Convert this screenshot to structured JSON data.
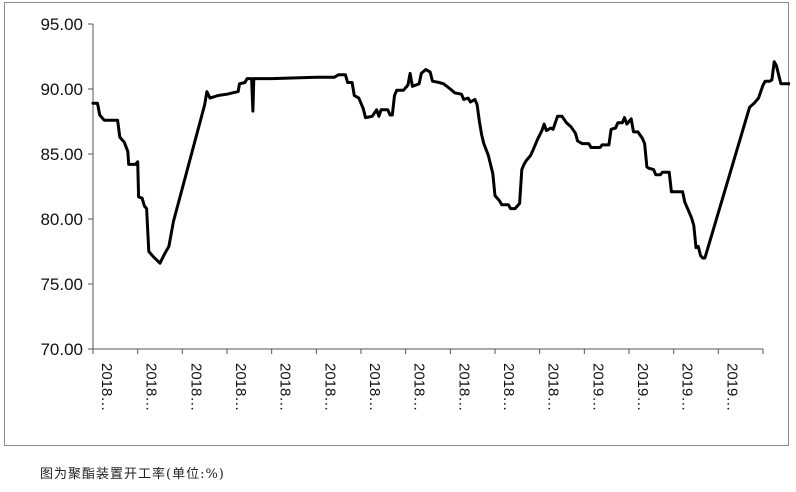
{
  "caption": "图为聚酯装置开工率(单位:%)",
  "chart_data": {
    "type": "line",
    "title": "",
    "xlabel": "",
    "ylabel": "",
    "ylim": [
      70,
      95
    ],
    "y_ticks": [
      "70.00",
      "75.00",
      "80.00",
      "85.00",
      "90.00",
      "95.00"
    ],
    "x_tick_labels": [
      "2018…",
      "2018…",
      "2018…",
      "2018…",
      "2018…",
      "2018…",
      "2018…",
      "2018…",
      "2018…",
      "2018…",
      "2018…",
      "2019…",
      "2019…",
      "2019…",
      "2019…"
    ],
    "grid": false,
    "legend": "none",
    "line_color": "#000000",
    "series": [
      {
        "values": [
          [
            0.0,
            88.9
          ],
          [
            0.1,
            88.9
          ],
          [
            0.15,
            88.0
          ],
          [
            0.25,
            87.6
          ],
          [
            0.55,
            87.6
          ],
          [
            0.6,
            86.3
          ],
          [
            0.7,
            85.9
          ],
          [
            0.78,
            85.2
          ],
          [
            0.8,
            84.2
          ],
          [
            0.95,
            84.2
          ],
          [
            1.0,
            84.4
          ],
          [
            1.02,
            81.7
          ],
          [
            1.1,
            81.6
          ],
          [
            1.15,
            81.0
          ],
          [
            1.2,
            80.8
          ],
          [
            1.25,
            77.5
          ],
          [
            1.35,
            77.1
          ],
          [
            1.5,
            76.6
          ],
          [
            1.6,
            77.3
          ],
          [
            1.7,
            77.9
          ],
          [
            1.8,
            79.8
          ],
          [
            2.5,
            88.8
          ],
          [
            2.55,
            89.8
          ],
          [
            2.62,
            89.3
          ],
          [
            2.8,
            89.5
          ],
          [
            3.0,
            89.6
          ],
          [
            3.25,
            89.8
          ],
          [
            3.28,
            90.4
          ],
          [
            3.4,
            90.5
          ],
          [
            3.45,
            90.8
          ],
          [
            3.55,
            90.8
          ],
          [
            3.58,
            88.3
          ],
          [
            3.6,
            90.8
          ],
          [
            4.0,
            90.8
          ],
          [
            5.0,
            90.9
          ],
          [
            5.4,
            90.9
          ],
          [
            5.5,
            91.1
          ],
          [
            5.65,
            91.1
          ],
          [
            5.7,
            90.5
          ],
          [
            5.8,
            90.5
          ],
          [
            5.85,
            89.5
          ],
          [
            5.95,
            89.3
          ],
          [
            6.05,
            88.5
          ],
          [
            6.1,
            87.8
          ],
          [
            6.25,
            87.9
          ],
          [
            6.35,
            88.4
          ],
          [
            6.4,
            87.9
          ],
          [
            6.45,
            88.4
          ],
          [
            6.6,
            88.4
          ],
          [
            6.65,
            88.0
          ],
          [
            6.7,
            88.0
          ],
          [
            6.75,
            89.5
          ],
          [
            6.8,
            89.9
          ],
          [
            6.95,
            89.9
          ],
          [
            7.05,
            90.3
          ],
          [
            7.1,
            91.2
          ],
          [
            7.15,
            90.2
          ],
          [
            7.3,
            90.4
          ],
          [
            7.35,
            91.2
          ],
          [
            7.45,
            91.5
          ],
          [
            7.55,
            91.3
          ],
          [
            7.6,
            90.6
          ],
          [
            7.75,
            90.5
          ],
          [
            7.85,
            90.4
          ],
          [
            8.0,
            90.0
          ],
          [
            8.1,
            89.7
          ],
          [
            8.25,
            89.6
          ],
          [
            8.3,
            89.2
          ],
          [
            8.4,
            89.3
          ],
          [
            8.45,
            89.0
          ],
          [
            8.55,
            89.2
          ],
          [
            8.6,
            88.8
          ],
          [
            8.65,
            87.5
          ],
          [
            8.7,
            86.5
          ],
          [
            8.75,
            85.8
          ],
          [
            8.85,
            84.9
          ],
          [
            8.95,
            83.5
          ],
          [
            9.0,
            81.8
          ],
          [
            9.1,
            81.4
          ],
          [
            9.15,
            81.1
          ],
          [
            9.3,
            81.1
          ],
          [
            9.35,
            80.8
          ],
          [
            9.45,
            80.8
          ],
          [
            9.55,
            81.2
          ],
          [
            9.6,
            83.8
          ],
          [
            9.65,
            84.2
          ],
          [
            9.7,
            84.5
          ],
          [
            9.8,
            84.9
          ],
          [
            9.85,
            85.3
          ],
          [
            9.95,
            86.1
          ],
          [
            10.05,
            86.8
          ],
          [
            10.1,
            87.3
          ],
          [
            10.15,
            86.8
          ],
          [
            10.25,
            87.0
          ],
          [
            10.3,
            86.9
          ],
          [
            10.35,
            87.4
          ],
          [
            10.4,
            87.9
          ],
          [
            10.5,
            87.9
          ],
          [
            10.6,
            87.4
          ],
          [
            10.7,
            87.1
          ],
          [
            10.8,
            86.6
          ],
          [
            10.85,
            86.0
          ],
          [
            10.95,
            85.8
          ],
          [
            11.1,
            85.8
          ],
          [
            11.15,
            85.5
          ],
          [
            11.35,
            85.5
          ],
          [
            11.4,
            85.7
          ],
          [
            11.55,
            85.7
          ],
          [
            11.6,
            86.9
          ],
          [
            11.7,
            87.0
          ],
          [
            11.75,
            87.4
          ],
          [
            11.85,
            87.4
          ],
          [
            11.9,
            87.8
          ],
          [
            11.95,
            87.3
          ],
          [
            12.05,
            87.7
          ],
          [
            12.1,
            86.7
          ],
          [
            12.2,
            86.7
          ],
          [
            12.3,
            86.2
          ],
          [
            12.35,
            85.8
          ],
          [
            12.4,
            84.0
          ],
          [
            12.45,
            83.9
          ],
          [
            12.55,
            83.8
          ],
          [
            12.6,
            83.4
          ],
          [
            12.7,
            83.4
          ],
          [
            12.75,
            83.6
          ],
          [
            12.9,
            83.6
          ],
          [
            12.95,
            82.1
          ],
          [
            13.2,
            82.1
          ],
          [
            13.25,
            81.3
          ],
          [
            13.4,
            80.1
          ],
          [
            13.45,
            79.5
          ],
          [
            13.5,
            77.8
          ],
          [
            13.55,
            77.9
          ],
          [
            13.6,
            77.2
          ],
          [
            13.65,
            77.0
          ],
          [
            13.7,
            77.0
          ],
          [
            14.7,
            88.6
          ],
          [
            14.8,
            88.9
          ],
          [
            14.9,
            89.3
          ],
          [
            15.0,
            90.3
          ],
          [
            15.05,
            90.6
          ],
          [
            15.15,
            90.6
          ],
          [
            15.2,
            90.7
          ],
          [
            15.25,
            92.1
          ],
          [
            15.3,
            91.8
          ],
          [
            15.35,
            91.1
          ],
          [
            15.4,
            90.4
          ],
          [
            15.55,
            90.4
          ],
          [
            15.65,
            90.4
          ]
        ]
      }
    ]
  }
}
